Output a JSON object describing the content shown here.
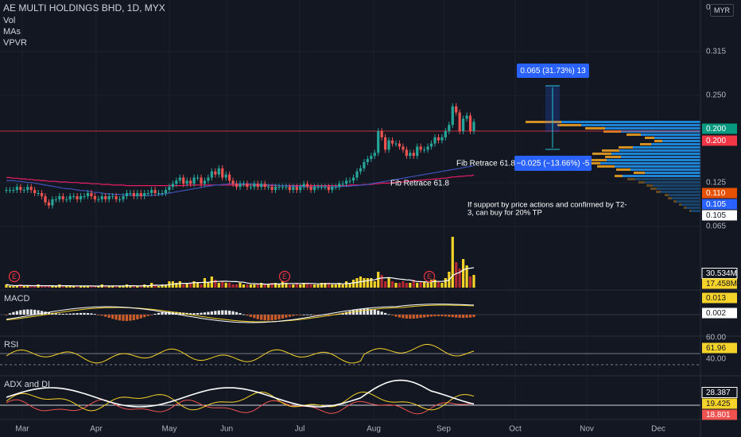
{
  "header": {
    "title": "AE MULTI HOLDINGS BHD, 1D, MYX",
    "indicators": [
      "Vol",
      "MAs",
      "VPVR"
    ],
    "currency": "MYR",
    "zero_label": "0"
  },
  "colors": {
    "background": "#131722",
    "up": "#26a69a",
    "down": "#ef5350",
    "grid": "#1e222d",
    "vol_up": "#f5d328",
    "vol_down": "#b22833",
    "ma_fast": "#e91e63",
    "ma_slow": "#3f51b5",
    "macd": "#ffffff",
    "signal": "#f5d328",
    "rsi": "#f5d328",
    "adx": "#ffffff",
    "di_plus": "#f5d328",
    "di_minus": "#ef5350",
    "vpvr_a": "#2196f3",
    "vpvr_b": "#f5a623"
  },
  "chart_data": [
    {
      "type": "candlestick",
      "pane": "price",
      "title": "AE MULTI HOLDINGS BHD, 1D, MYX",
      "unit": "MYR",
      "x_ticks": [
        "Mar",
        "Apr",
        "May",
        "Jun",
        "Jul",
        "Aug",
        "Sep",
        "Oct",
        "Nov",
        "Dec"
      ],
      "y_ticks": [
        "0.315",
        "0.250",
        "0.125",
        "0.065"
      ],
      "price_badges": [
        {
          "label": "0.200",
          "bg": "#089981",
          "fg": "#ffffff"
        },
        {
          "label": "0.200",
          "bg": "#f23645",
          "fg": "#ffffff"
        },
        {
          "label": "0.110",
          "bg": "#e65100",
          "fg": "#ffffff"
        },
        {
          "label": "0.105",
          "bg": "#2962ff",
          "fg": "#ffffff"
        },
        {
          "label": "0.105",
          "bg": "#ffffff",
          "fg": "#131722"
        }
      ],
      "last_price_line": 0.2,
      "close": [
        0.105,
        0.105,
        0.105,
        0.11,
        0.105,
        0.105,
        0.11,
        0.105,
        0.1,
        0.1,
        0.095,
        0.085,
        0.08,
        0.09,
        0.09,
        0.095,
        0.09,
        0.09,
        0.095,
        0.095,
        0.09,
        0.095,
        0.095,
        0.1,
        0.095,
        0.09,
        0.09,
        0.095,
        0.09,
        0.095,
        0.095,
        0.09,
        0.09,
        0.095,
        0.1,
        0.1,
        0.095,
        0.1,
        0.095,
        0.1,
        0.1,
        0.105,
        0.1,
        0.1,
        0.1,
        0.105,
        0.11,
        0.115,
        0.12,
        0.125,
        0.115,
        0.12,
        0.115,
        0.125,
        0.125,
        0.115,
        0.12,
        0.125,
        0.135,
        0.13,
        0.14,
        0.125,
        0.13,
        0.12,
        0.115,
        0.11,
        0.115,
        0.115,
        0.11,
        0.11,
        0.115,
        0.11,
        0.115,
        0.11,
        0.11,
        0.105,
        0.11,
        0.11,
        0.11,
        0.11,
        0.105,
        0.11,
        0.105,
        0.11,
        0.115,
        0.11,
        0.105,
        0.11,
        0.11,
        0.11,
        0.11,
        0.105,
        0.11,
        0.11,
        0.115,
        0.115,
        0.12,
        0.12,
        0.125,
        0.135,
        0.14,
        0.15,
        0.155,
        0.16,
        0.165,
        0.2,
        0.19,
        0.17,
        0.185,
        0.18,
        0.18,
        0.175,
        0.17,
        0.16,
        0.165,
        0.16,
        0.175,
        0.17,
        0.17,
        0.175,
        0.18,
        0.19,
        0.185,
        0.19,
        0.2,
        0.21,
        0.24,
        0.23,
        0.2,
        0.22,
        0.225,
        0.2,
        0.215
      ]
    },
    {
      "type": "line",
      "pane": "moving-averages",
      "series": [
        {
          "values": [
            0.125,
            0.125,
            0.124,
            0.124,
            0.123,
            0.123,
            0.122,
            0.122,
            0.121,
            0.121,
            0.12,
            0.12,
            0.119,
            0.119,
            0.119,
            0.118,
            0.118,
            0.118,
            0.117,
            0.117,
            0.117,
            0.116,
            0.116,
            0.116,
            0.115,
            0.115,
            0.115,
            0.114,
            0.114,
            0.114,
            0.113,
            0.113,
            0.113,
            0.113,
            0.112,
            0.112,
            0.112,
            0.112,
            0.112,
            0.112,
            0.112,
            0.112,
            0.112,
            0.112,
            0.112,
            0.112,
            0.112,
            0.112,
            0.112,
            0.112,
            0.112,
            0.113,
            0.113,
            0.113,
            0.113,
            0.113,
            0.113,
            0.113,
            0.113,
            0.113,
            0.113,
            0.113,
            0.113,
            0.113,
            0.113,
            0.113,
            0.113,
            0.113,
            0.113,
            0.113,
            0.113,
            0.113,
            0.112,
            0.112,
            0.112,
            0.112,
            0.112,
            0.112,
            0.112,
            0.112,
            0.112,
            0.112,
            0.112,
            0.112,
            0.112,
            0.112,
            0.112,
            0.112,
            0.112,
            0.112,
            0.112,
            0.112,
            0.112,
            0.112,
            0.112,
            0.112,
            0.112,
            0.113,
            0.113,
            0.113,
            0.113,
            0.114,
            0.114,
            0.114,
            0.115,
            0.115,
            0.116,
            0.116,
            0.116,
            0.117,
            0.117,
            0.118,
            0.118,
            0.119,
            0.119,
            0.12,
            0.12,
            0.121,
            0.121,
            0.122,
            0.122,
            0.123,
            0.123,
            0.124,
            0.124,
            0.125,
            0.126,
            0.126,
            0.127,
            0.127,
            0.128,
            0.128,
            0.129
          ]
        },
        {
          "values": [
            0.12,
            0.12,
            0.12,
            0.119,
            0.119,
            0.118,
            0.117,
            0.117,
            0.116,
            0.115,
            0.114,
            0.113,
            0.112,
            0.111,
            0.11,
            0.109,
            0.108,
            0.107,
            0.107,
            0.106,
            0.105,
            0.104,
            0.104,
            0.103,
            0.102,
            0.101,
            0.101,
            0.1,
            0.099,
            0.099,
            0.098,
            0.098,
            0.098,
            0.097,
            0.097,
            0.097,
            0.096,
            0.096,
            0.096,
            0.096,
            0.096,
            0.096,
            0.097,
            0.097,
            0.098,
            0.099,
            0.1,
            0.101,
            0.102,
            0.103,
            0.104,
            0.105,
            0.106,
            0.107,
            0.108,
            0.109,
            0.11,
            0.111,
            0.112,
            0.113,
            0.113,
            0.114,
            0.114,
            0.115,
            0.115,
            0.115,
            0.115,
            0.115,
            0.115,
            0.115,
            0.115,
            0.114,
            0.114,
            0.114,
            0.113,
            0.113,
            0.113,
            0.112,
            0.112,
            0.112,
            0.111,
            0.111,
            0.111,
            0.111,
            0.11,
            0.11,
            0.11,
            0.11,
            0.11,
            0.11,
            0.11,
            0.11,
            0.11,
            0.11,
            0.11,
            0.111,
            0.111,
            0.111,
            0.112,
            0.112,
            0.113,
            0.113,
            0.114,
            0.115,
            0.116,
            0.117,
            0.118,
            0.119,
            0.12,
            0.121,
            0.122,
            0.123,
            0.124,
            0.125,
            0.126,
            0.127,
            0.128,
            0.129,
            0.13,
            0.131,
            0.132,
            0.133,
            0.134,
            0.135,
            0.136,
            0.137,
            0.138,
            0.139,
            0.14,
            0.141,
            0.142,
            0.143,
            0.144
          ]
        }
      ]
    },
    {
      "type": "bar",
      "pane": "volume",
      "y_badges": [
        {
          "label": "30.534M",
          "bg": "#131722",
          "fg": "#ffffff",
          "border": "#ffffff"
        },
        {
          "label": "17.458M",
          "bg": "#f5d328",
          "fg": "#131722"
        }
      ],
      "values": [
        2,
        1,
        1,
        1,
        2,
        1,
        1,
        1,
        1,
        2,
        1,
        1,
        1,
        1,
        1,
        2,
        1,
        1,
        1,
        1,
        1,
        1,
        1,
        1,
        1,
        1,
        1,
        2,
        1,
        1,
        1,
        1,
        1,
        1,
        2,
        1,
        1,
        1,
        1,
        2,
        1,
        3,
        2,
        1,
        2,
        2,
        4,
        4,
        3,
        4,
        2,
        3,
        3,
        4,
        3,
        2,
        6,
        3,
        7,
        5,
        3,
        4,
        3,
        3,
        2,
        2,
        3,
        2,
        2,
        2,
        2,
        2,
        3,
        2,
        2,
        3,
        3,
        2,
        4,
        3,
        2,
        2,
        3,
        2,
        3,
        3,
        2,
        2,
        2,
        3,
        3,
        3,
        2,
        2,
        3,
        2,
        4,
        3,
        5,
        6,
        7,
        6,
        6,
        6,
        4,
        10,
        8,
        4,
        6,
        4,
        3,
        3,
        4,
        3,
        3,
        5,
        3,
        4,
        4,
        3,
        5,
        5,
        4,
        3,
        6,
        10,
        32,
        16,
        12,
        18,
        14,
        7,
        8
      ],
      "events": [
        "E",
        "E",
        "E"
      ]
    },
    {
      "type": "bar",
      "pane": "macd",
      "title": "MACD",
      "y_badges": [
        {
          "label": "0.013",
          "bg": "#f5d328",
          "fg": "#131722"
        },
        {
          "label": "0.002",
          "bg": "#ffffff",
          "fg": "#131722"
        }
      ]
    },
    {
      "type": "line",
      "pane": "rsi",
      "title": "RSI",
      "y_badges": [
        {
          "label": "61.96",
          "bg": "#f5d328",
          "fg": "#131722"
        }
      ],
      "y_ticks": [
        "60.00",
        "40.00"
      ]
    },
    {
      "type": "line",
      "pane": "adx",
      "title": "ADX and DI",
      "y_badges": [
        {
          "label": "28.387",
          "bg": "#131722",
          "fg": "#ffffff",
          "border": "#ffffff"
        },
        {
          "label": "19.425",
          "bg": "#f5d328",
          "fg": "#131722"
        },
        {
          "label": "18.801",
          "bg": "#ef5350",
          "fg": "#ffffff"
        }
      ]
    }
  ],
  "annotations": {
    "measure_up": "0.065 (31.73%) 13",
    "measure_down": "−0.025 (−13.66%) -5",
    "fib_1": "Fib Retrace 61.8",
    "fib_2": "Fib Retrace 61.8",
    "note_line1": "If support by price actions and confirmed by T2-",
    "note_line2": "3, can buy for 20% TP"
  }
}
